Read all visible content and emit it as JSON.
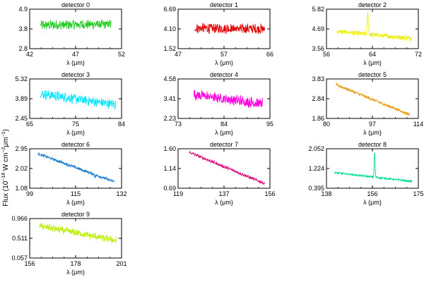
{
  "figure": {
    "ylabel_main": "Flux (10",
    "ylabel_exp1": "−18",
    "ylabel_mid": " W cm",
    "ylabel_exp2": "−2",
    "ylabel_mid2": "μm",
    "ylabel_exp3": "−1",
    "ylabel_end": ")"
  },
  "chart_data": [
    {
      "type": "line",
      "title": "detector 0",
      "xlabel": "λ (μm)",
      "xlim": [
        42,
        52
      ],
      "ylim": [
        2.8,
        4.9
      ],
      "xticks": [
        "42",
        "47",
        "52"
      ],
      "yticks": [
        "2.8",
        "3.8",
        "4.9"
      ],
      "color": "#22cc22",
      "x_range": [
        43.2,
        50.9
      ],
      "trend": [
        4.05,
        4.1
      ],
      "noise": 0.22,
      "peak": null
    },
    {
      "type": "line",
      "title": "detector 1",
      "xlabel": "λ (μm)",
      "xlim": [
        47,
        66
      ],
      "ylim": [
        1.52,
        6.69
      ],
      "xticks": [
        "47",
        "57",
        "66"
      ],
      "yticks": [
        "1.52",
        "4.10",
        "6.69"
      ],
      "color": "#dd0000",
      "x_range": [
        50.4,
        64.9
      ],
      "trend": [
        4.2,
        4.1
      ],
      "noise": 0.55,
      "peak": null
    },
    {
      "type": "line",
      "title": "detector 2",
      "xlabel": "λ (μm)",
      "xlim": [
        56,
        72
      ],
      "ylim": [
        3.56,
        5.82
      ],
      "xticks": [
        "56",
        "64",
        "72"
      ],
      "yticks": [
        "3.56",
        "4.69",
        "5.82"
      ],
      "color": "#eeee00",
      "x_range": [
        57.8,
        70.8
      ],
      "trend": [
        4.55,
        4.15
      ],
      "noise": 0.12,
      "peak": {
        "x": 63.2,
        "y": 5.55,
        "w": 0.15
      }
    },
    {
      "type": "line",
      "title": "detector 3",
      "xlabel": "λ (μm)",
      "xlim": [
        65,
        84
      ],
      "ylim": [
        2.45,
        5.32
      ],
      "xticks": [
        "65",
        "75",
        "84"
      ],
      "yticks": [
        "2.45",
        "3.89",
        "5.32"
      ],
      "color": "#00e5ff",
      "x_range": [
        67.2,
        82.8
      ],
      "trend": [
        4.25,
        3.45
      ],
      "noise": 0.3,
      "peak": null
    },
    {
      "type": "line",
      "title": "detector 4",
      "xlabel": "λ (μm)",
      "xlim": [
        73,
        95
      ],
      "ylim": [
        2.23,
        4.58
      ],
      "xticks": [
        "73",
        "84",
        "95"
      ],
      "yticks": [
        "2.23",
        "3.41",
        "4.58"
      ],
      "color": "#ff00dd",
      "x_range": [
        76.8,
        93.2
      ],
      "trend": [
        3.65,
        3.1
      ],
      "noise": 0.28,
      "peak": null
    },
    {
      "type": "line",
      "title": "detector 5",
      "xlabel": "λ (μm)",
      "xlim": [
        80,
        114
      ],
      "ylim": [
        1.86,
        3.83
      ],
      "xticks": [
        "80",
        "97",
        "114"
      ],
      "yticks": [
        "1.86",
        "2.84",
        "3.83"
      ],
      "color": "#e69500",
      "x_range": [
        83.5,
        110.8
      ],
      "trend": [
        3.55,
        2.05
      ],
      "noise": 0.06,
      "peak": null
    },
    {
      "type": "line",
      "title": "detector 6",
      "xlabel": "λ (μm)",
      "xlim": [
        99,
        132
      ],
      "ylim": [
        1.08,
        2.95
      ],
      "xticks": [
        "99",
        "115",
        "132"
      ],
      "yticks": [
        "1.08",
        "2.02",
        "2.95"
      ],
      "color": "#1177cc",
      "x_range": [
        102,
        129.5
      ],
      "trend": [
        2.72,
        1.38
      ],
      "noise": 0.06,
      "peak": {
        "x": 122.5,
        "y": 1.62,
        "w": 0.25
      }
    },
    {
      "type": "line",
      "title": "detector 7",
      "xlabel": "λ (μm)",
      "xlim": [
        119,
        156
      ],
      "ylim": [
        0.69,
        1.6
      ],
      "xticks": [
        "119",
        "137",
        "156"
      ],
      "yticks": [
        "0.69",
        "1.14",
        "1.60"
      ],
      "color": "#dd0077",
      "x_range": [
        123.5,
        153.8
      ],
      "trend": [
        1.52,
        0.8
      ],
      "noise": 0.03,
      "peak": null
    },
    {
      "type": "line",
      "title": "detector 8",
      "xlabel": "λ (μm)",
      "xlim": [
        138,
        175
      ],
      "ylim": [
        0.395,
        2.052
      ],
      "xticks": [
        "138",
        "156",
        "175"
      ],
      "yticks": [
        "0.395",
        "1.224",
        "2.052"
      ],
      "color": "#00dd99",
      "x_range": [
        141.2,
        172.5
      ],
      "trend": [
        1.05,
        0.68
      ],
      "noise": 0.04,
      "peak": {
        "x": 157.4,
        "y": 1.92,
        "w": 0.25
      }
    },
    {
      "type": "line",
      "title": "detector 9",
      "xlabel": "λ (μm)",
      "xlim": [
        156,
        201
      ],
      "ylim": [
        0.057,
        0.966
      ],
      "xticks": [
        "156",
        "178",
        "201"
      ],
      "yticks": [
        "0.057",
        "0.511",
        "0.966"
      ],
      "color": "#bbee00",
      "x_range": [
        160.5,
        198.5
      ],
      "trend": [
        0.8,
        0.46
      ],
      "noise": 0.07,
      "peak": null
    }
  ]
}
